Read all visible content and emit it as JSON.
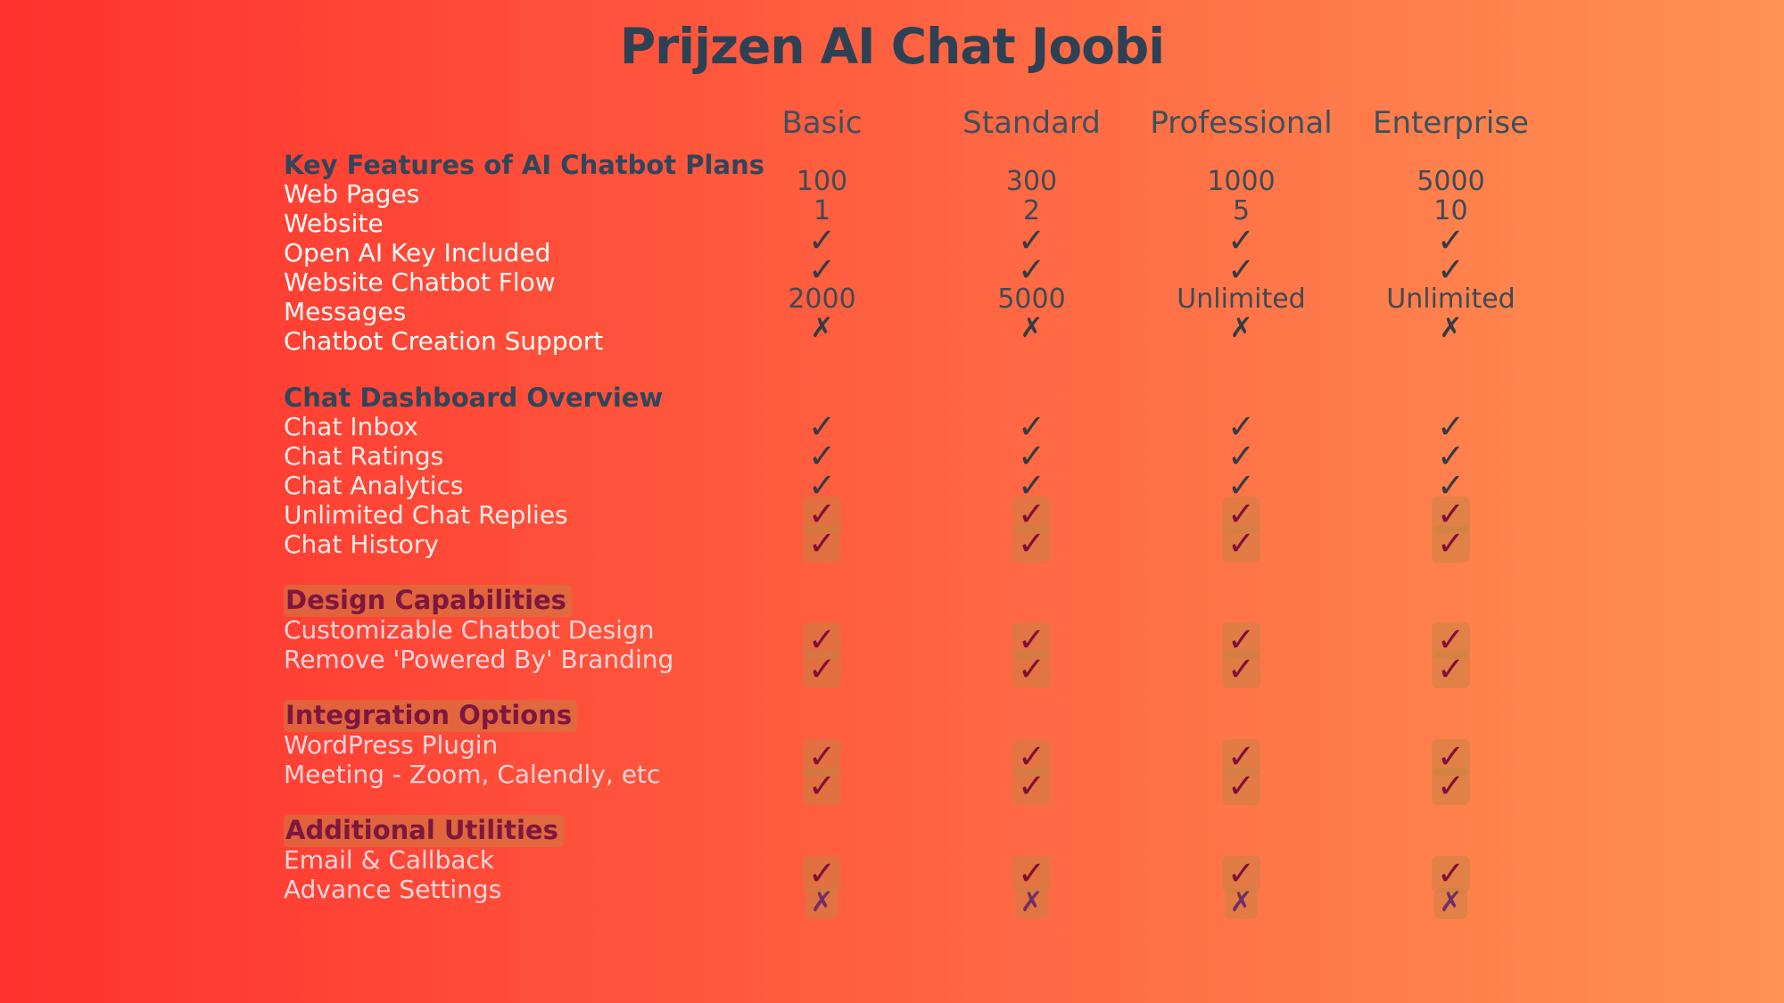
{
  "title": "Prijzen AI Chat Joobi",
  "plans": [
    "Basic",
    "Standard",
    "Professional",
    "Enterprise"
  ],
  "glyphs": {
    "check": "✓",
    "cross": "✗"
  },
  "palette": {
    "bg-left": "#ff312e",
    "bg-right": "#ff9253",
    "heading": "#2e4154",
    "plan-header": "#3e505c",
    "value-text": "#3f4a54",
    "check-navy": "#333b43",
    "check-maroon": "#7e1038",
    "cross-purple": "#6e2f67",
    "header-navy": "#31455a",
    "header-maroon": "#7c1740",
    "label-white": "#fffcfa",
    "label-blush": "#fdeae7",
    "label-pink": "#f8d6dc",
    "halo": "rgba(198,130,66,0.5)"
  },
  "sections": [
    {
      "header": "Key Features of AI Chatbot Plans",
      "header_tone": "navy",
      "header_halo": false,
      "label_tone": "white",
      "rows": [
        {
          "label": "Web Pages",
          "type": "text",
          "values": [
            "100",
            "300",
            "1000",
            "5000"
          ]
        },
        {
          "label": "Website",
          "type": "text",
          "values": [
            "1",
            "2",
            "5",
            "10"
          ]
        },
        {
          "label": "Open AI Key Included",
          "type": "check",
          "tone": "navy",
          "halo": false
        },
        {
          "label": "Website Chatbot Flow",
          "type": "check",
          "tone": "navy",
          "halo": false
        },
        {
          "label": "Messages",
          "type": "text",
          "values": [
            "2000",
            "5000",
            "Unlimited",
            "Unlimited"
          ]
        },
        {
          "label": "Chatbot Creation Support",
          "type": "cross",
          "tone": "navy",
          "halo": false
        }
      ]
    },
    {
      "header": "Chat Dashboard Overview",
      "header_tone": "navy",
      "header_halo": false,
      "label_tone": "blush",
      "rows": [
        {
          "label": "Chat Inbox",
          "type": "check",
          "tone": "navy",
          "halo": false
        },
        {
          "label": "Chat Ratings",
          "type": "check",
          "tone": "navy",
          "halo": false
        },
        {
          "label": "Chat Analytics",
          "type": "check",
          "tone": "navy",
          "halo": false
        },
        {
          "label": "Unlimited Chat Replies",
          "type": "check",
          "tone": "maroon",
          "halo": true
        },
        {
          "label": "Chat History",
          "type": "check",
          "tone": "maroon",
          "halo": true
        }
      ]
    },
    {
      "header": "Design Capabilities",
      "header_tone": "maroon",
      "header_halo": true,
      "label_tone": "pink",
      "rows": [
        {
          "label": "Customizable Chatbot Design",
          "type": "check",
          "tone": "maroon",
          "halo": true
        },
        {
          "label": "Remove 'Powered By' Branding",
          "type": "check",
          "tone": "maroon",
          "halo": true
        }
      ]
    },
    {
      "header": "Integration Options",
      "header_tone": "maroon",
      "header_halo": true,
      "label_tone": "pink",
      "rows": [
        {
          "label": "WordPress Plugin",
          "type": "check",
          "tone": "maroon",
          "halo": true
        },
        {
          "label": "Meeting - Zoom, Calendly, etc",
          "type": "check",
          "tone": "maroon",
          "halo": true
        }
      ]
    },
    {
      "header": "Additional Utilities",
      "header_tone": "maroon",
      "header_halo": true,
      "label_tone": "pink",
      "rows": [
        {
          "label": "Email & Callback",
          "type": "check",
          "tone": "maroon",
          "halo": true
        },
        {
          "label": "Advance Settings",
          "type": "cross",
          "tone": "purple",
          "halo": true
        }
      ]
    }
  ]
}
